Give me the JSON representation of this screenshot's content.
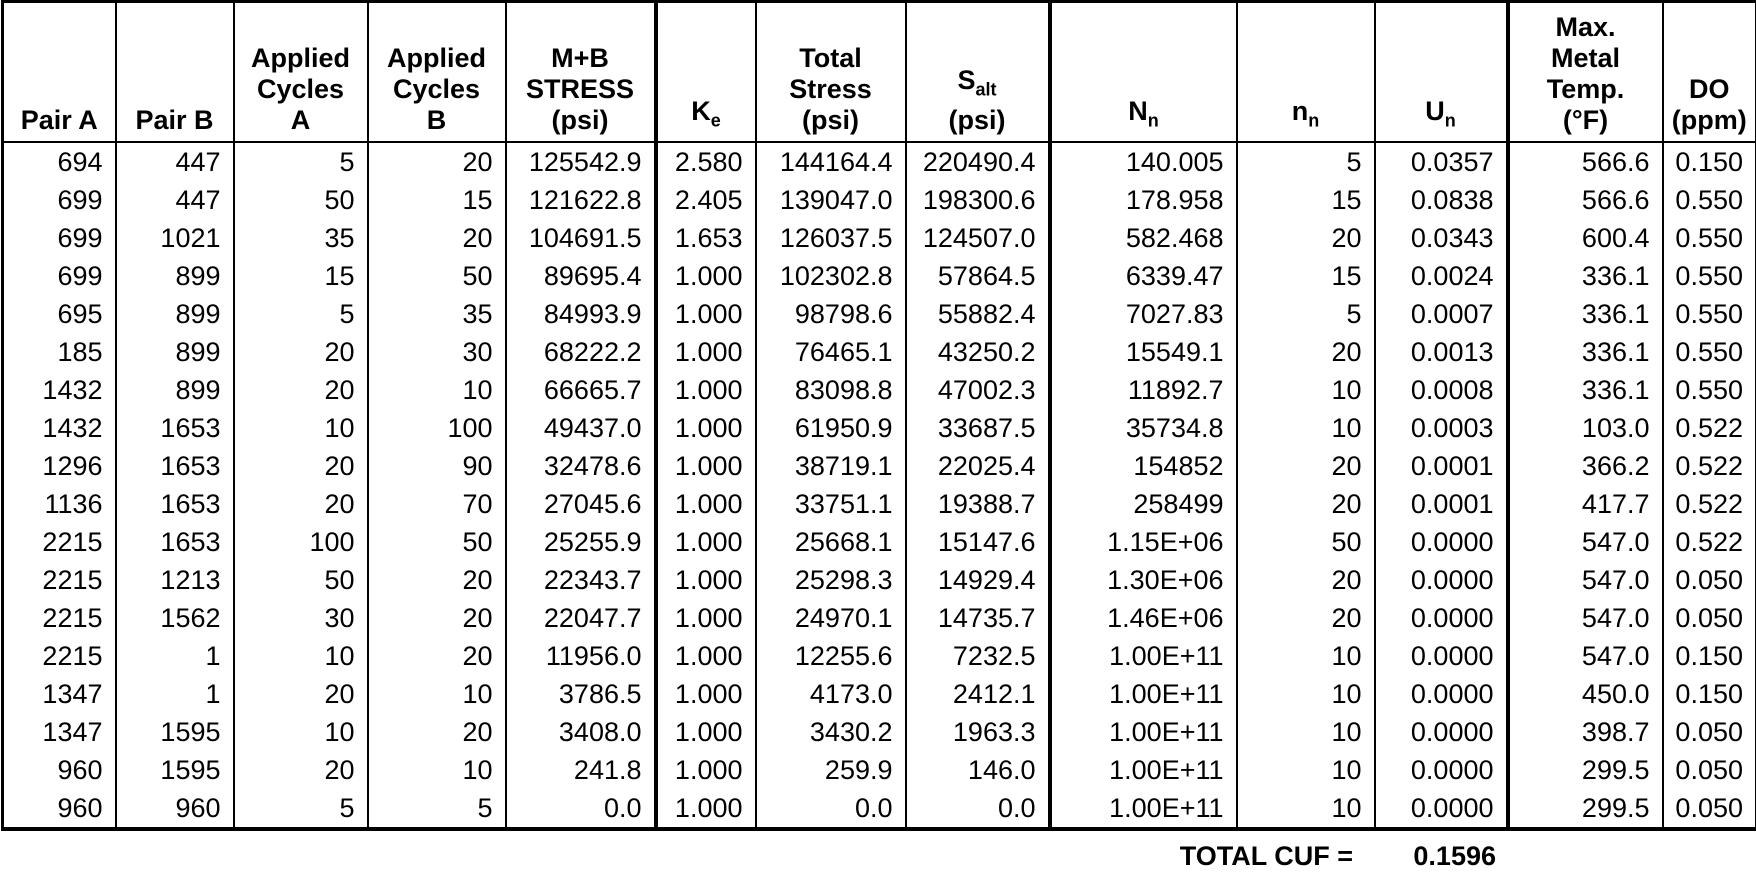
{
  "colors": {
    "text": "#000000",
    "background": "#ffffff",
    "border": "#000000"
  },
  "columns": [
    {
      "id": "pair-a",
      "header": [
        "Pair A"
      ]
    },
    {
      "id": "pair-b",
      "header": [
        "Pair B"
      ]
    },
    {
      "id": "cycles-a",
      "header": [
        "Applied",
        "Cycles",
        "A"
      ]
    },
    {
      "id": "cycles-b",
      "header": [
        "Applied",
        "Cycles",
        "B"
      ]
    },
    {
      "id": "mb-stress",
      "header": [
        "M+B",
        "STRESS",
        "(psi)"
      ]
    },
    {
      "id": "ke",
      "header": [
        {
          "base": "K",
          "sub": "e"
        }
      ]
    },
    {
      "id": "total-stress",
      "header": [
        "Total",
        "Stress",
        "(psi)"
      ]
    },
    {
      "id": "s-alt",
      "header": [
        {
          "base": "S",
          "sub": "alt"
        },
        "(psi)"
      ]
    },
    {
      "id": "n-allow",
      "header": [
        {
          "base": "N",
          "sub": "n"
        }
      ]
    },
    {
      "id": "n-applied",
      "header": [
        {
          "base": "n",
          "sub": "n"
        }
      ]
    },
    {
      "id": "u-n",
      "header": [
        {
          "base": "U",
          "sub": "n"
        }
      ]
    },
    {
      "id": "max-metal-temp",
      "header": [
        "Max.",
        "Metal",
        "Temp.",
        "(°F)"
      ]
    },
    {
      "id": "do-ppm",
      "header": [
        "DO",
        "(ppm)"
      ]
    }
  ],
  "rows": [
    [
      "694",
      "447",
      "5",
      "20",
      "125542.9",
      "2.580",
      "144164.4",
      "220490.4",
      "140.005",
      "5",
      "0.0357",
      "566.6",
      "0.150"
    ],
    [
      "699",
      "447",
      "50",
      "15",
      "121622.8",
      "2.405",
      "139047.0",
      "198300.6",
      "178.958",
      "15",
      "0.0838",
      "566.6",
      "0.550"
    ],
    [
      "699",
      "1021",
      "35",
      "20",
      "104691.5",
      "1.653",
      "126037.5",
      "124507.0",
      "582.468",
      "20",
      "0.0343",
      "600.4",
      "0.550"
    ],
    [
      "699",
      "899",
      "15",
      "50",
      "89695.4",
      "1.000",
      "102302.8",
      "57864.5",
      "6339.47",
      "15",
      "0.0024",
      "336.1",
      "0.550"
    ],
    [
      "695",
      "899",
      "5",
      "35",
      "84993.9",
      "1.000",
      "98798.6",
      "55882.4",
      "7027.83",
      "5",
      "0.0007",
      "336.1",
      "0.550"
    ],
    [
      "185",
      "899",
      "20",
      "30",
      "68222.2",
      "1.000",
      "76465.1",
      "43250.2",
      "15549.1",
      "20",
      "0.0013",
      "336.1",
      "0.550"
    ],
    [
      "1432",
      "899",
      "20",
      "10",
      "66665.7",
      "1.000",
      "83098.8",
      "47002.3",
      "11892.7",
      "10",
      "0.0008",
      "336.1",
      "0.550"
    ],
    [
      "1432",
      "1653",
      "10",
      "100",
      "49437.0",
      "1.000",
      "61950.9",
      "33687.5",
      "35734.8",
      "10",
      "0.0003",
      "103.0",
      "0.522"
    ],
    [
      "1296",
      "1653",
      "20",
      "90",
      "32478.6",
      "1.000",
      "38719.1",
      "22025.4",
      "154852",
      "20",
      "0.0001",
      "366.2",
      "0.522"
    ],
    [
      "1136",
      "1653",
      "20",
      "70",
      "27045.6",
      "1.000",
      "33751.1",
      "19388.7",
      "258499",
      "20",
      "0.0001",
      "417.7",
      "0.522"
    ],
    [
      "2215",
      "1653",
      "100",
      "50",
      "25255.9",
      "1.000",
      "25668.1",
      "15147.6",
      "1.15E+06",
      "50",
      "0.0000",
      "547.0",
      "0.522"
    ],
    [
      "2215",
      "1213",
      "50",
      "20",
      "22343.7",
      "1.000",
      "25298.3",
      "14929.4",
      "1.30E+06",
      "20",
      "0.0000",
      "547.0",
      "0.050"
    ],
    [
      "2215",
      "1562",
      "30",
      "20",
      "22047.7",
      "1.000",
      "24970.1",
      "14735.7",
      "1.46E+06",
      "20",
      "0.0000",
      "547.0",
      "0.050"
    ],
    [
      "2215",
      "1",
      "10",
      "20",
      "11956.0",
      "1.000",
      "12255.6",
      "7232.5",
      "1.00E+11",
      "10",
      "0.0000",
      "547.0",
      "0.150"
    ],
    [
      "1347",
      "1",
      "20",
      "10",
      "3786.5",
      "1.000",
      "4173.0",
      "2412.1",
      "1.00E+11",
      "10",
      "0.0000",
      "450.0",
      "0.150"
    ],
    [
      "1347",
      "1595",
      "10",
      "20",
      "3408.0",
      "1.000",
      "3430.2",
      "1963.3",
      "1.00E+11",
      "10",
      "0.0000",
      "398.7",
      "0.050"
    ],
    [
      "960",
      "1595",
      "20",
      "10",
      "241.8",
      "1.000",
      "259.9",
      "146.0",
      "1.00E+11",
      "10",
      "0.0000",
      "299.5",
      "0.050"
    ],
    [
      "960",
      "960",
      "5",
      "5",
      "0.0",
      "1.000",
      "0.0",
      "0.0",
      "1.00E+11",
      "10",
      "0.0000",
      "299.5",
      "0.050"
    ]
  ],
  "footer": {
    "label": "TOTAL CUF =",
    "value": "0.1596"
  }
}
